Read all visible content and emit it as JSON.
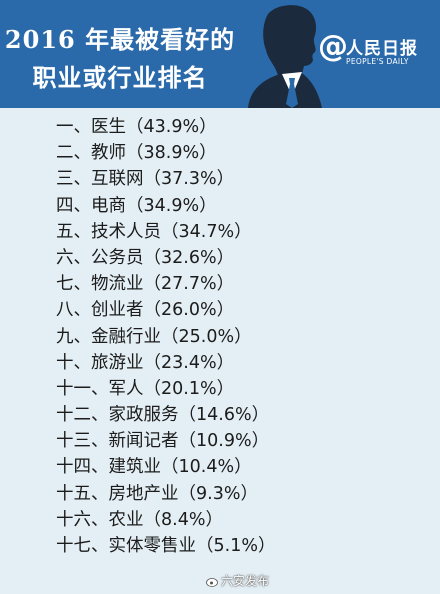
{
  "header": {
    "title_line1": "2016 年最被看好的",
    "title_line2": "职业或行业排名",
    "brand_at": "@",
    "brand_name": "人民日报",
    "brand_en": "PEOPLE'S DAILY"
  },
  "ranking": [
    "一、医生（43.9%）",
    "二、教师（38.9%）",
    "三、互联网（37.3%）",
    "四、电商（34.9%）",
    "五、技术人员（34.7%）",
    "六、公务员（32.6%）",
    "七、物流业（27.7%）",
    "八、创业者（26.0%）",
    "九、金融行业（25.0%）",
    "十、旅游业（23.4%）",
    "十一、军人（20.1%）",
    "十二、家政服务（14.6%）",
    "十三、新闻记者（10.9%）",
    "十四、建筑业（10.4%）",
    "十五、房地产业（9.3%）",
    "十六、农业（8.4%）",
    "十七、实体零售业（5.1%）"
  ],
  "watermark": "六安发布",
  "colors": {
    "header_bg": "#2a6aaa",
    "page_bg": "#e4eff5",
    "text": "#1c1c1c",
    "silhouette": "#1b2a3d"
  },
  "icons": {
    "silhouette": "businessman-silhouette-icon",
    "watermark": "weibo-icon"
  }
}
